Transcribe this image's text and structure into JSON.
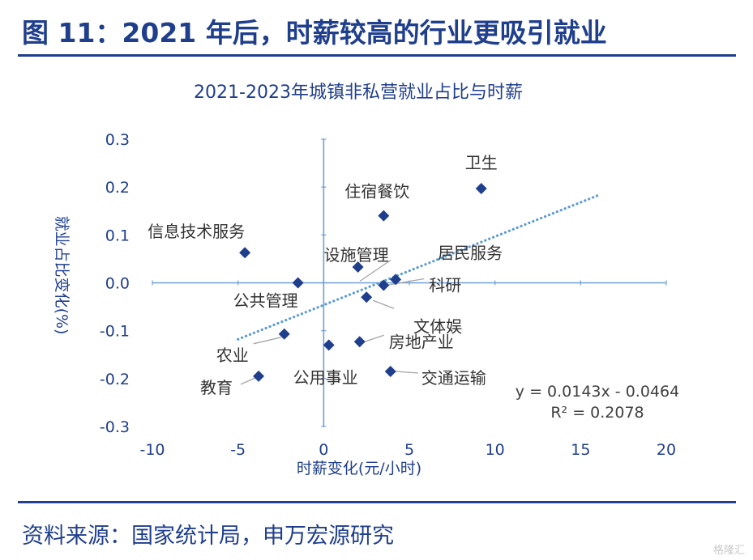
{
  "header": {
    "title": "图 11：2021 年后，时薪较高的行业更吸引就业"
  },
  "footer": {
    "source": "资料来源：国家统计局，申万宏源研究",
    "watermark": "格隆汇"
  },
  "colors": {
    "brand": "#1f3e8c",
    "axis": "#6f9fd6",
    "point": "#1f3e8c",
    "trend": "#5b9bd5",
    "label": "#333333",
    "leader": "#a6a6a6"
  },
  "chart_data": {
    "type": "scatter",
    "title": "2021-2023年城镇非私营就业占比与时薪",
    "xlabel": "时薪变化(元/小时)",
    "ylabel": "就业占比变化(%)",
    "xlim": [
      -10,
      20
    ],
    "ylim": [
      -0.3,
      0.3
    ],
    "xticks": [
      "-10",
      "-5",
      "0",
      "5",
      "10",
      "15",
      "20"
    ],
    "yticks": [
      "0.3",
      "0.2",
      "0.1",
      "0.0",
      "-0.1",
      "-0.2",
      "-0.3"
    ],
    "grid": false,
    "points": [
      {
        "label": "卫生",
        "x": 9.2,
        "y": 0.197
      },
      {
        "label": "住宿餐饮",
        "x": 3.5,
        "y": 0.14
      },
      {
        "label": "信息技术服务",
        "x": -4.6,
        "y": 0.063
      },
      {
        "label": "设施管理",
        "x": 2.0,
        "y": 0.033
      },
      {
        "label": "居民服务",
        "x": 4.2,
        "y": 0.007
      },
      {
        "label": "科研",
        "x": 3.5,
        "y": -0.005
      },
      {
        "label": "公共管理",
        "x": -1.5,
        "y": 0.0
      },
      {
        "label": "文体娱",
        "x": 2.5,
        "y": -0.03
      },
      {
        "label": "农业",
        "x": -2.3,
        "y": -0.107
      },
      {
        "label": "公用事业",
        "x": 0.3,
        "y": -0.13
      },
      {
        "label": "房地产业",
        "x": 2.1,
        "y": -0.123
      },
      {
        "label": "交通运输",
        "x": 3.9,
        "y": -0.185
      },
      {
        "label": "教育",
        "x": -3.8,
        "y": -0.195
      }
    ],
    "trendline": {
      "slope": 0.0143,
      "intercept": -0.0464,
      "x_from": -5,
      "x_to": 16
    },
    "annotations": [
      "y = 0.0143x - 0.0464",
      "R² = 0.2078"
    ]
  }
}
